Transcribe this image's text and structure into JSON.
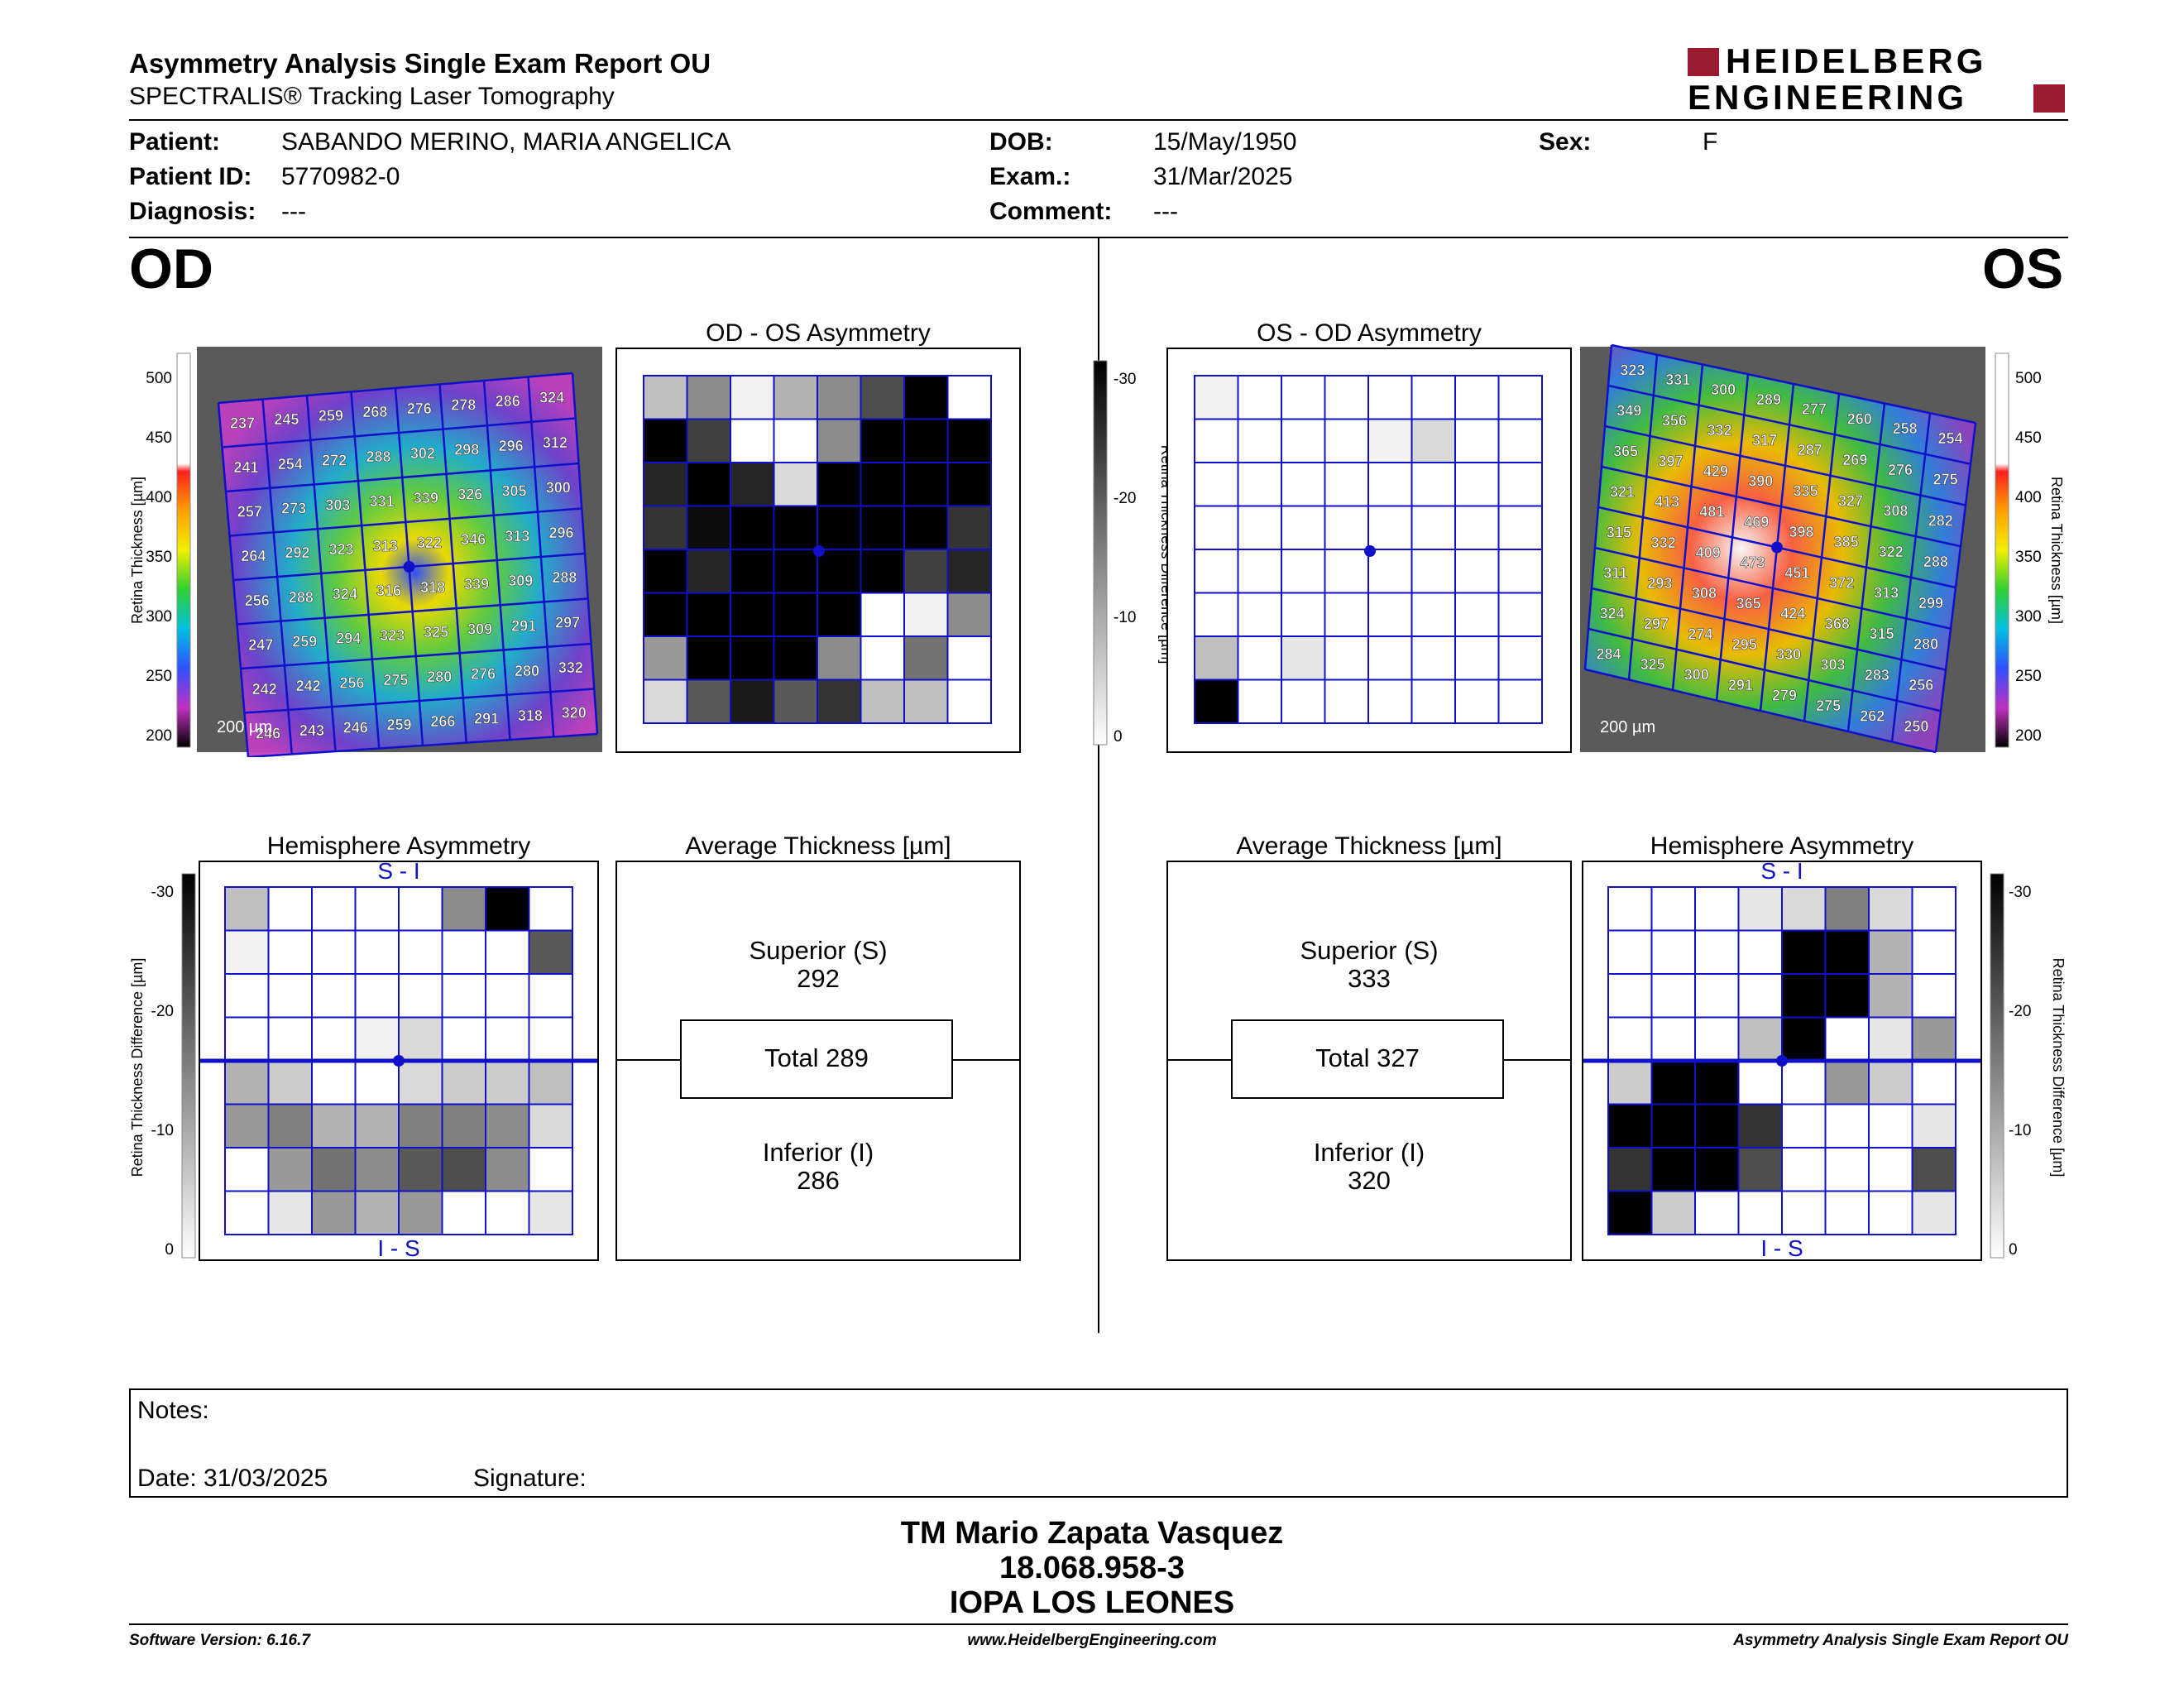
{
  "header": {
    "title": "Asymmetry Analysis Single Exam Report OU",
    "subtitle": "SPECTRALIS® Tracking Laser Tomography",
    "logo_line1": "HEIDELBERG",
    "logo_line2": "ENGINEERING"
  },
  "patient": {
    "patient_label": "Patient:",
    "patient_value": "SABANDO MERINO, MARIA ANGELICA",
    "id_label": "Patient ID:",
    "id_value": "5770982-0",
    "diagnosis_label": "Diagnosis:",
    "diagnosis_value": "---",
    "dob_label": "DOB:",
    "dob_value": "15/May/1950",
    "exam_label": "Exam.:",
    "exam_value": "31/Mar/2025",
    "comment_label": "Comment:",
    "comment_value": "---",
    "sex_label": "Sex:",
    "sex_value": "F"
  },
  "eyes": {
    "left_label": "OD",
    "right_label": "OS"
  },
  "colors": {
    "grid_blue": "#1010c8",
    "black": "#000000"
  },
  "od": {
    "thickness_axis_label": "Retina Thickness [µm]",
    "thickness_ticks": [
      "500",
      "450",
      "400",
      "350",
      "300",
      "250",
      "200"
    ],
    "scale_bar": "200 µm",
    "thickness_values": [
      [
        "237",
        "245",
        "259",
        "268",
        "276",
        "278",
        "286",
        "324"
      ],
      [
        "241",
        "254",
        "272",
        "288",
        "302",
        "298",
        "296",
        "312"
      ],
      [
        "257",
        "273",
        "303",
        "331",
        "339",
        "326",
        "305",
        "300"
      ],
      [
        "264",
        "292",
        "323",
        "313",
        "322",
        "346",
        "313",
        "296"
      ],
      [
        "256",
        "288",
        "324",
        "316",
        "318",
        "339",
        "309",
        "288"
      ],
      [
        "247",
        "259",
        "294",
        "323",
        "325",
        "309",
        "291",
        "297"
      ],
      [
        "242",
        "242",
        "256",
        "275",
        "280",
        "276",
        "280",
        "332"
      ],
      [
        "246",
        "243",
        "246",
        "259",
        "266",
        "291",
        "318",
        "320"
      ]
    ],
    "asym_title": "OD - OS Asymmetry",
    "asym_grid": [
      [
        25,
        45,
        5,
        30,
        45,
        70,
        100,
        0
      ],
      [
        100,
        75,
        0,
        0,
        45,
        100,
        100,
        100
      ],
      [
        85,
        100,
        85,
        15,
        100,
        100,
        100,
        100
      ],
      [
        80,
        95,
        100,
        100,
        100,
        100,
        100,
        80
      ],
      [
        100,
        85,
        100,
        100,
        100,
        100,
        75,
        85
      ],
      [
        100,
        100,
        100,
        100,
        100,
        0,
        5,
        45
      ],
      [
        40,
        100,
        100,
        100,
        45,
        0,
        55,
        0
      ],
      [
        15,
        65,
        90,
        65,
        80,
        25,
        25,
        0
      ]
    ],
    "hemi_title": "Hemisphere Asymmetry",
    "hemi_grid": [
      [
        25,
        0,
        0,
        0,
        0,
        45,
        100,
        0
      ],
      [
        5,
        0,
        0,
        0,
        0,
        0,
        0,
        65
      ],
      [
        0,
        0,
        0,
        0,
        0,
        0,
        0,
        0
      ],
      [
        0,
        0,
        0,
        5,
        15,
        0,
        0,
        0
      ],
      [
        30,
        20,
        0,
        0,
        15,
        20,
        20,
        25
      ],
      [
        40,
        50,
        30,
        30,
        50,
        50,
        45,
        15
      ],
      [
        0,
        40,
        55,
        45,
        65,
        70,
        45,
        0
      ],
      [
        0,
        10,
        40,
        30,
        40,
        0,
        0,
        10
      ]
    ],
    "hemi_top": "S - I",
    "hemi_bottom": "I - S",
    "avg_title": "Average Thickness [µm]",
    "superior_label": "Superior (S)",
    "superior_value": "292",
    "total": "Total 289",
    "inferior_label": "Inferior (I)",
    "inferior_value": "286"
  },
  "os": {
    "thickness_axis_label": "Retina Thickness [µm]",
    "thickness_ticks": [
      "500",
      "450",
      "400",
      "350",
      "300",
      "250",
      "200"
    ],
    "scale_bar": "200 µm",
    "thickness_values": [
      [
        "323",
        "331",
        "300",
        "289",
        "277",
        "260",
        "258",
        "254"
      ],
      [
        "349",
        "356",
        "332",
        "317",
        "287",
        "269",
        "276",
        "275"
      ],
      [
        "365",
        "397",
        "429",
        "390",
        "335",
        "327",
        "308",
        "282"
      ],
      [
        "321",
        "413",
        "481",
        "469",
        "398",
        "385",
        "322",
        "288"
      ],
      [
        "315",
        "332",
        "409",
        "473",
        "451",
        "372",
        "313",
        "299"
      ],
      [
        "311",
        "293",
        "308",
        "365",
        "424",
        "368",
        "315",
        "280"
      ],
      [
        "324",
        "297",
        "274",
        "295",
        "330",
        "303",
        "283",
        "256"
      ],
      [
        "284",
        "325",
        "300",
        "291",
        "279",
        "275",
        "262",
        "250"
      ]
    ],
    "asym_title": "OS - OD Asymmetry",
    "asym_grid": [
      [
        5,
        0,
        0,
        0,
        0,
        0,
        0,
        0
      ],
      [
        0,
        0,
        0,
        0,
        5,
        15,
        0,
        0
      ],
      [
        0,
        0,
        0,
        0,
        0,
        0,
        0,
        0
      ],
      [
        0,
        0,
        0,
        0,
        0,
        0,
        0,
        0
      ],
      [
        0,
        0,
        0,
        0,
        0,
        0,
        0,
        0
      ],
      [
        0,
        0,
        0,
        0,
        0,
        0,
        0,
        0
      ],
      [
        25,
        0,
        10,
        0,
        0,
        0,
        0,
        0
      ],
      [
        100,
        0,
        0,
        0,
        0,
        0,
        0,
        0
      ]
    ],
    "hemi_title": "Hemisphere Asymmetry",
    "hemi_grid": [
      [
        0,
        0,
        0,
        10,
        15,
        50,
        15,
        0
      ],
      [
        0,
        0,
        0,
        0,
        100,
        100,
        30,
        0
      ],
      [
        0,
        0,
        0,
        0,
        100,
        100,
        30,
        0
      ],
      [
        0,
        0,
        0,
        25,
        100,
        0,
        10,
        40
      ],
      [
        20,
        100,
        100,
        0,
        0,
        40,
        20,
        0
      ],
      [
        100,
        100,
        100,
        80,
        0,
        0,
        0,
        10
      ],
      [
        80,
        100,
        100,
        70,
        0,
        0,
        0,
        70
      ],
      [
        100,
        20,
        0,
        0,
        0,
        0,
        0,
        10
      ]
    ],
    "hemi_top": "S - I",
    "hemi_bottom": "I - S",
    "avg_title": "Average Thickness [µm]",
    "superior_label": "Superior (S)",
    "superior_value": "333",
    "total": "Total 327",
    "inferior_label": "Inferior (I)",
    "inferior_value": "320"
  },
  "diff_scale": {
    "axis_label": "Retina Thickness Difference [µm]",
    "ticks": [
      "-30",
      "-20",
      "-10",
      "0"
    ]
  },
  "notes": {
    "notes_label": "Notes:",
    "date_label": "Date: 31/03/2025",
    "signature_label": "Signature:"
  },
  "signature": {
    "name": "TM Mario Zapata Vasquez",
    "id": "18.068.958-3",
    "org": "IOPA LOS LEONES"
  },
  "footer": {
    "software": "Software Version: 6.16.7",
    "website": "www.HeidelbergEngineering.com",
    "report": "Asymmetry Analysis Single Exam Report OU"
  }
}
